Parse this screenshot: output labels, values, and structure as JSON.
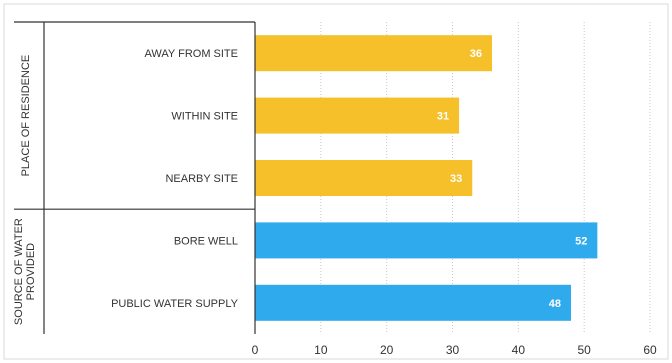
{
  "chart_data": {
    "type": "bar",
    "orientation": "horizontal",
    "groups": [
      {
        "name": "PLACE OF RESIDENCE",
        "color": "#F5C02A",
        "categories": [
          "AWAY FROM SITE",
          "WITHIN SITE",
          "NEARBY SITE"
        ],
        "values": [
          36,
          31,
          33
        ]
      },
      {
        "name": "SOURCE OF WATER PROVIDED",
        "color": "#2FAAEC",
        "categories": [
          "BORE WELL",
          "PUBLIC WATER SUPPLY"
        ],
        "values": [
          52,
          48
        ]
      }
    ],
    "xlim": [
      0,
      60
    ],
    "xticks": [
      0,
      10,
      20,
      30,
      40,
      50,
      60
    ],
    "grid": true,
    "data_labels": true,
    "title": "",
    "xlabel": "",
    "ylabel": ""
  }
}
